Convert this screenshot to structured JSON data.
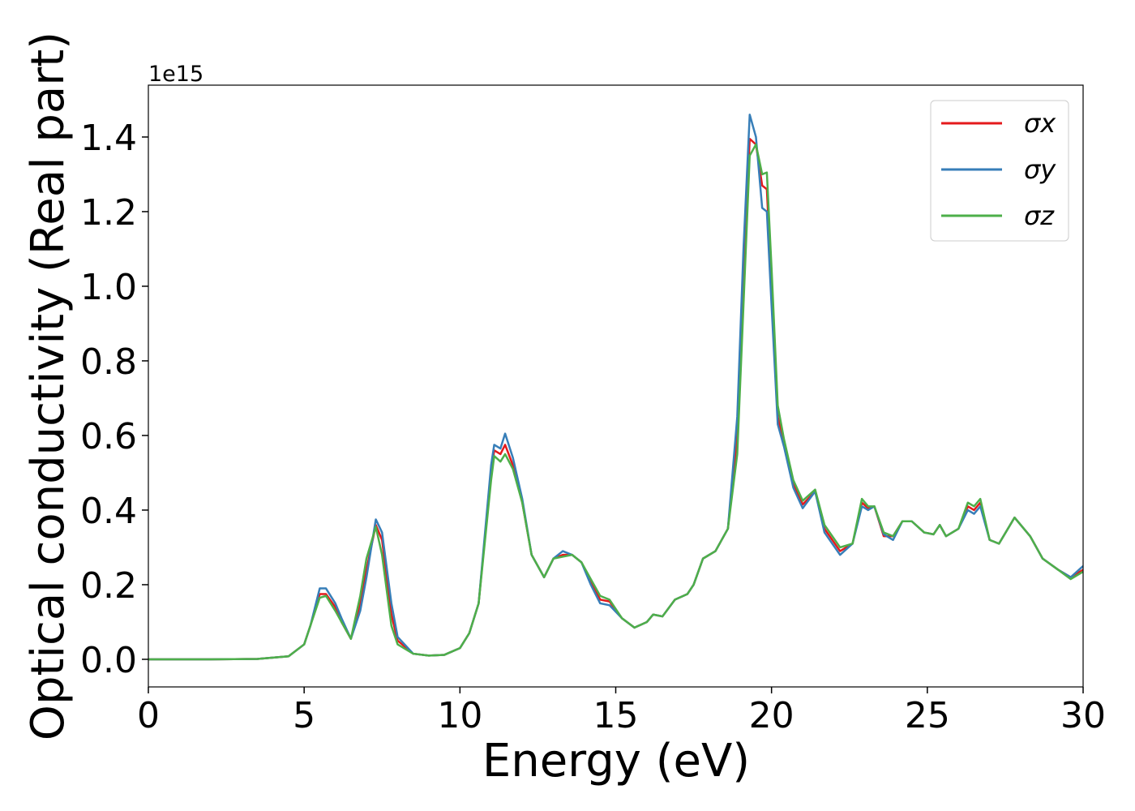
{
  "chart_data": {
    "type": "line",
    "xlabel": "Energy (eV)",
    "ylabel": "Optical conductivity (Real part)",
    "y_offset_label": "1e15",
    "xlim": [
      0,
      30
    ],
    "ylim": [
      -0.074,
      1.539
    ],
    "xticks": [
      0,
      5,
      10,
      15,
      20,
      25,
      30
    ],
    "yticks": [
      {
        "value": 0,
        "label": "0.0"
      },
      0.2,
      0.4,
      0.6,
      0.8,
      {
        "value": 1,
        "label": "1.0"
      },
      1.2,
      1.4
    ],
    "grid": false,
    "legend": "upper right",
    "x": [
      0,
      2,
      3.5,
      4.5,
      5.0,
      5.2,
      5.5,
      5.7,
      6.0,
      6.2,
      6.5,
      6.8,
      7.0,
      7.3,
      7.5,
      7.8,
      8.0,
      8.5,
      9.0,
      9.5,
      10.0,
      10.3,
      10.6,
      11.0,
      11.1,
      11.3,
      11.45,
      11.7,
      12.0,
      12.3,
      12.7,
      13.0,
      13.3,
      13.6,
      13.9,
      14.2,
      14.5,
      14.8,
      15.2,
      15.6,
      16.0,
      16.2,
      16.5,
      16.9,
      17.3,
      17.5,
      17.8,
      18.2,
      18.6,
      18.9,
      19.1,
      19.3,
      19.5,
      19.7,
      19.85,
      20.0,
      20.2,
      20.4,
      20.7,
      21.0,
      21.4,
      21.7,
      22.2,
      22.6,
      22.9,
      23.1,
      23.3,
      23.6,
      23.9,
      24.2,
      24.5,
      24.9,
      25.2,
      25.4,
      25.6,
      26.0,
      26.3,
      26.5,
      26.7,
      27.0,
      27.3,
      27.8,
      28.3,
      28.7,
      29.2,
      29.6,
      30.0
    ],
    "series": [
      {
        "name": "σx",
        "color": "#e41a1c",
        "values": [
          0,
          0,
          0.001,
          0.008,
          0.04,
          0.09,
          0.175,
          0.175,
          0.14,
          0.1,
          0.055,
          0.15,
          0.24,
          0.36,
          0.32,
          0.12,
          0.05,
          0.015,
          0.01,
          0.012,
          0.03,
          0.07,
          0.15,
          0.5,
          0.56,
          0.55,
          0.575,
          0.52,
          0.42,
          0.28,
          0.22,
          0.27,
          0.28,
          0.28,
          0.26,
          0.21,
          0.16,
          0.155,
          0.11,
          0.085,
          0.1,
          0.12,
          0.115,
          0.16,
          0.175,
          0.2,
          0.27,
          0.29,
          0.35,
          0.6,
          1.0,
          1.395,
          1.38,
          1.27,
          1.26,
          1.0,
          0.65,
          0.58,
          0.47,
          0.415,
          0.45,
          0.35,
          0.29,
          0.31,
          0.42,
          0.405,
          0.41,
          0.33,
          0.33,
          0.37,
          0.37,
          0.34,
          0.335,
          0.36,
          0.33,
          0.35,
          0.41,
          0.4,
          0.42,
          0.32,
          0.31,
          0.38,
          0.33,
          0.27,
          0.24,
          0.22,
          0.24
        ]
      },
      {
        "name": "σy",
        "color": "#377eb8",
        "values": [
          0,
          0,
          0.001,
          0.008,
          0.04,
          0.09,
          0.19,
          0.19,
          0.15,
          0.11,
          0.055,
          0.13,
          0.22,
          0.375,
          0.34,
          0.15,
          0.06,
          0.015,
          0.01,
          0.012,
          0.03,
          0.07,
          0.15,
          0.52,
          0.575,
          0.565,
          0.605,
          0.54,
          0.43,
          0.28,
          0.22,
          0.27,
          0.29,
          0.28,
          0.26,
          0.2,
          0.15,
          0.145,
          0.11,
          0.085,
          0.1,
          0.12,
          0.115,
          0.16,
          0.175,
          0.2,
          0.27,
          0.29,
          0.35,
          0.65,
          1.1,
          1.46,
          1.4,
          1.21,
          1.2,
          0.95,
          0.63,
          0.57,
          0.46,
          0.405,
          0.45,
          0.34,
          0.28,
          0.31,
          0.41,
          0.4,
          0.41,
          0.335,
          0.32,
          0.37,
          0.37,
          0.34,
          0.335,
          0.36,
          0.33,
          0.35,
          0.4,
          0.39,
          0.41,
          0.32,
          0.31,
          0.38,
          0.33,
          0.27,
          0.24,
          0.22,
          0.25
        ]
      },
      {
        "name": "σz",
        "color": "#4daf4a",
        "values": [
          0,
          0,
          0.001,
          0.008,
          0.04,
          0.09,
          0.165,
          0.17,
          0.13,
          0.1,
          0.055,
          0.17,
          0.27,
          0.355,
          0.28,
          0.09,
          0.04,
          0.015,
          0.01,
          0.012,
          0.03,
          0.07,
          0.15,
          0.48,
          0.545,
          0.53,
          0.55,
          0.51,
          0.42,
          0.28,
          0.22,
          0.27,
          0.275,
          0.28,
          0.26,
          0.215,
          0.17,
          0.16,
          0.11,
          0.085,
          0.1,
          0.12,
          0.115,
          0.16,
          0.175,
          0.2,
          0.27,
          0.29,
          0.35,
          0.55,
          0.95,
          1.35,
          1.38,
          1.3,
          1.305,
          1.05,
          0.68,
          0.59,
          0.48,
          0.425,
          0.455,
          0.36,
          0.3,
          0.31,
          0.43,
          0.41,
          0.41,
          0.34,
          0.33,
          0.37,
          0.37,
          0.34,
          0.335,
          0.36,
          0.33,
          0.35,
          0.42,
          0.41,
          0.43,
          0.32,
          0.31,
          0.38,
          0.33,
          0.27,
          0.24,
          0.215,
          0.235
        ]
      }
    ]
  }
}
